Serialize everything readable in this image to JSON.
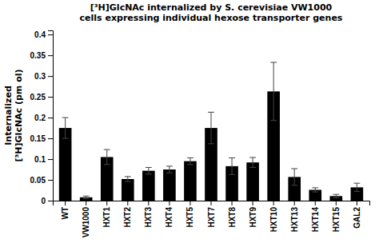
{
  "chart_data": {
    "type": "bar",
    "title": [
      "[³H]GlcNAc internalized by S. cerevisiae VW1000",
      "cells expressing individual hexose transporter genes"
    ],
    "ylabel": [
      "Internalized",
      "[³H]GlcNAc (pm ol)"
    ],
    "categories": [
      "WT",
      "VW1000",
      "HXT1",
      "HXT2",
      "HXT3",
      "HXT4",
      "HXT5",
      "HXT7",
      "HXT8",
      "HXT9",
      "HXT10",
      "HXT13",
      "HXT14",
      "HXT15",
      "GAL2"
    ],
    "values": [
      0.175,
      0.008,
      0.105,
      0.052,
      0.072,
      0.075,
      0.095,
      0.175,
      0.083,
      0.092,
      0.263,
      0.057,
      0.026,
      0.011,
      0.032
    ],
    "errors": [
      0.025,
      0.003,
      0.018,
      0.006,
      0.008,
      0.008,
      0.008,
      0.038,
      0.02,
      0.012,
      0.07,
      0.02,
      0.005,
      0.004,
      0.01
    ],
    "color": "#000000",
    "ylim": [
      0,
      0.41
    ],
    "yticks": [
      0,
      0.05,
      0.1,
      0.15,
      0.2,
      0.25,
      0.3,
      0.35,
      0.4
    ],
    "grid": false
  }
}
